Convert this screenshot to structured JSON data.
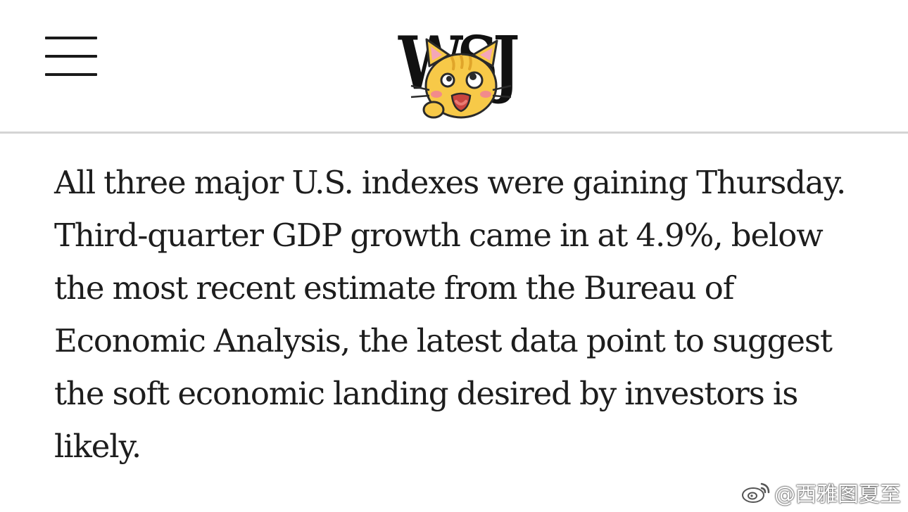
{
  "header": {
    "logo_text": "WSJ",
    "menu_label": "Menu"
  },
  "article": {
    "paragraph": "All three major U.S. indexes were gaining Thursday. Third-quarter GDP growth came in at 4.9%, below the most recent estimate from the Bureau of Economic Analysis, the latest data point to suggest the soft economic landing desired by investors is likely."
  },
  "watermark": {
    "text": "@西雅图夏至"
  },
  "icons": {
    "menu": "hamburger-menu-icon",
    "sticker": "cat-sticker-icon",
    "weibo": "weibo-icon"
  },
  "colors": {
    "text": "#1d1d1d",
    "divider": "#d4d4d4",
    "sticker_yellow": "#f7c948"
  }
}
